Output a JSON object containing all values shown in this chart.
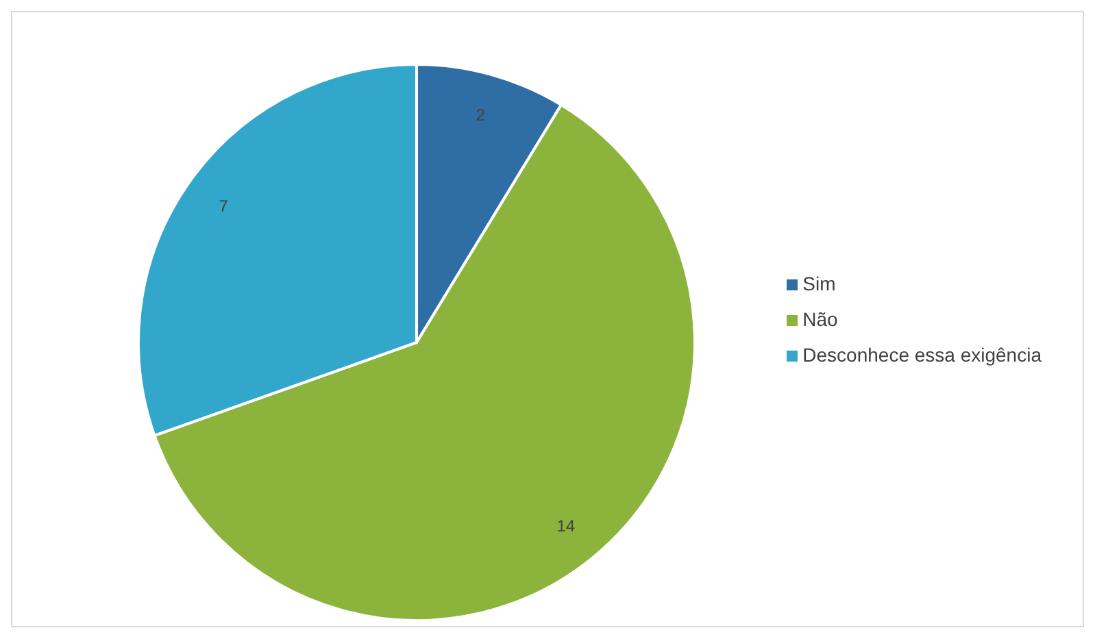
{
  "chart_data": {
    "type": "pie",
    "categories": [
      "Sim",
      "Não",
      "Desconhece essa exigência"
    ],
    "values": [
      2,
      14,
      7
    ],
    "colors": [
      "#2f6ea5",
      "#8cb43c",
      "#33a6cc"
    ],
    "data_labels": true,
    "legend": "right"
  }
}
